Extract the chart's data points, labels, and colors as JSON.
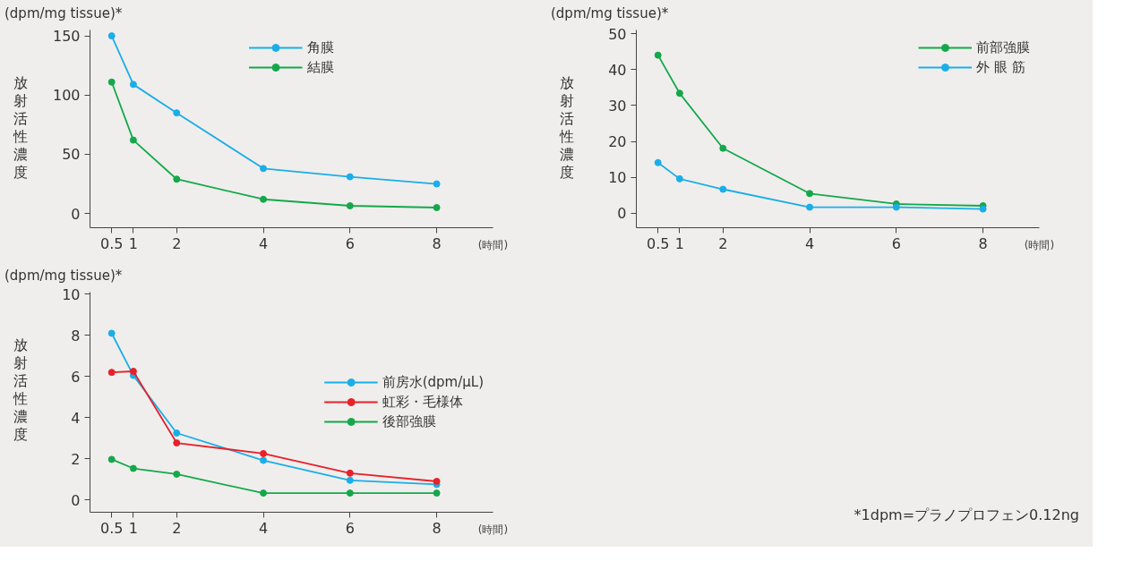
{
  "chart_data": [
    {
      "type": "line",
      "ylabel": "放射活性濃度",
      "xlabel": "(時間)",
      "annotations": [
        "(dpm/mg tissue)*"
      ],
      "x": [
        0.5,
        1,
        2,
        4,
        6,
        8
      ],
      "xlim": [
        0,
        9.3
      ],
      "xticks": [
        0.5,
        1,
        2,
        4,
        6,
        8
      ],
      "ylim": [
        -12,
        155
      ],
      "yticks": [
        0,
        50,
        100,
        150
      ],
      "grid": false,
      "legend": "top",
      "marker": "circle",
      "line_style": "solid",
      "series": [
        {
          "name": "角膜",
          "color": "#1aaee8",
          "values": [
            150,
            109,
            85,
            38,
            31,
            25
          ]
        },
        {
          "name": "結膜",
          "color": "#14a84a",
          "values": [
            111,
            62,
            29,
            12,
            6.5,
            5
          ]
        }
      ]
    },
    {
      "type": "line",
      "ylabel": "放射活性濃度",
      "xlabel": "(時間)",
      "annotations": [
        "(dpm/mg tissue)*"
      ],
      "x": [
        0.5,
        1,
        2,
        4,
        6,
        8
      ],
      "xlim": [
        0,
        9.3
      ],
      "xticks": [
        0.5,
        1,
        2,
        4,
        6,
        8
      ],
      "ylim": [
        -4,
        51
      ],
      "yticks": [
        0,
        10,
        20,
        30,
        40,
        50
      ],
      "grid": false,
      "legend": "top right",
      "marker": "circle",
      "line_style": "solid",
      "series": [
        {
          "name": "前部強膜",
          "color": "#14a84a",
          "values": [
            44,
            33.4,
            18.1,
            5.5,
            2.6,
            2.1
          ]
        },
        {
          "name": "外 眼 筋",
          "color": "#1aaee8",
          "values": [
            14.1,
            9.6,
            6.7,
            1.7,
            1.7,
            1.2
          ]
        }
      ]
    },
    {
      "type": "line",
      "ylabel": "放射活性濃度",
      "xlabel": "(時間)",
      "annotations": [
        "(dpm/mg tissue)*",
        "*1dpm=プラノプロフェン0.12ng"
      ],
      "x": [
        0.5,
        1,
        2,
        4,
        6,
        8
      ],
      "xlim": [
        0,
        9.3
      ],
      "xticks": [
        0.5,
        1,
        2,
        4,
        6,
        8
      ],
      "ylim": [
        -0.6,
        10.1
      ],
      "yticks": [
        0,
        2,
        4,
        6,
        8,
        10
      ],
      "grid": false,
      "legend": "right",
      "marker": "circle",
      "line_style": "solid",
      "series": [
        {
          "name": "前房水(dpm/μL)",
          "color": "#1aaee8",
          "values": [
            8.1,
            6.05,
            3.25,
            1.92,
            0.95,
            0.75
          ]
        },
        {
          "name": "虹彩・毛様体",
          "color": "#e8202a",
          "values": [
            6.2,
            6.25,
            2.77,
            2.25,
            1.3,
            0.9
          ]
        },
        {
          "name": "後部強膜",
          "color": "#14a84a",
          "values": [
            1.97,
            1.53,
            1.25,
            0.33,
            0.33,
            0.33
          ]
        }
      ]
    }
  ]
}
